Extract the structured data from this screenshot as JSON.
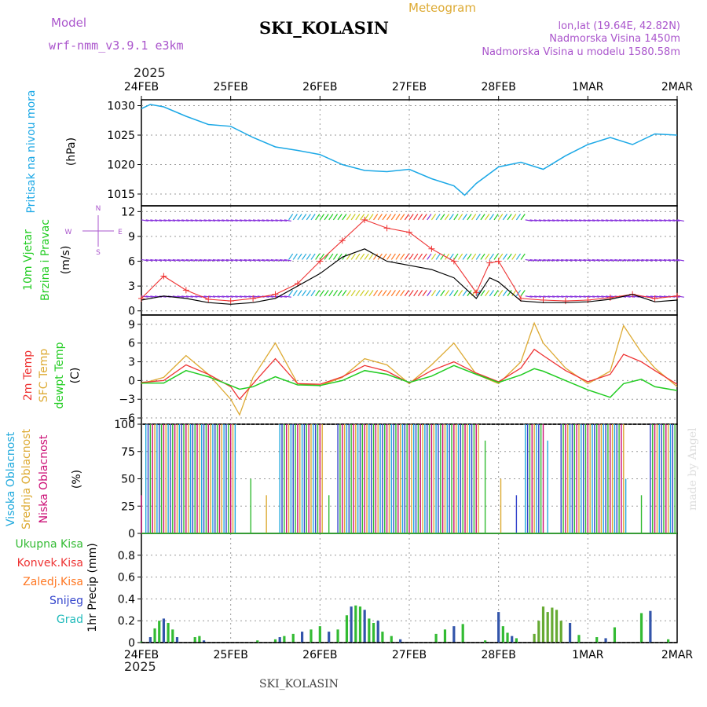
{
  "header": {
    "model_label": "Model",
    "model_name": "wrf-nmm_v3.9.1  e3km",
    "title": "SKI_KOLASIN",
    "subtitle": "Meteogram",
    "lonlat": "lon,lat (19.64E, 42.82N)",
    "elevation": "Nadmorska Visina 1450m",
    "model_elevation": "Nadmorska Visina u modelu 1580.58m",
    "year": "2025",
    "footer": "SKI_KOLASIN",
    "watermark": "made by Angel"
  },
  "colors": {
    "pressure": "#1ba8e6",
    "wind": "#22cc22",
    "t2m": "#ee3333",
    "sfc": "#ddaa33",
    "dew": "#22cc22",
    "high": "#22aadd",
    "mid": "#ddaa33",
    "low": "#cc1177",
    "precip": "#33bb33",
    "conv": "#ee3333",
    "frz": "#ff7722",
    "snow": "#3344cc",
    "grad": "#22bbbb",
    "model_label": "#aa55cc"
  },
  "chart_data": {
    "type": "meteogram",
    "time_labels": [
      "24FEB",
      "25FEB",
      "26FEB",
      "27FEB",
      "28FEB",
      "1MAR",
      "2MAR"
    ],
    "panels": [
      {
        "name": "pressure",
        "type": "line",
        "labels": [
          "Pritisak na nivou mora"
        ],
        "unit": "(hPa)",
        "ylim": [
          1013,
          1031
        ],
        "yticks": [
          1015,
          1020,
          1025,
          1030
        ],
        "x": [
          0,
          0.1,
          0.25,
          0.5,
          0.75,
          1,
          1.25,
          1.5,
          1.75,
          2,
          2.25,
          2.5,
          2.75,
          3,
          3.25,
          3.5,
          3.62,
          3.75,
          4,
          4.25,
          4.5,
          4.75,
          5,
          5.25,
          5.5,
          5.75,
          6
        ],
        "values": [
          1029.5,
          1030.2,
          1029.8,
          1028.2,
          1026.8,
          1026.5,
          1024.6,
          1023,
          1022.4,
          1021.7,
          1020,
          1019,
          1018.8,
          1019.2,
          1017.6,
          1016.4,
          1014.8,
          1016.8,
          1019.6,
          1020.4,
          1019.2,
          1021.5,
          1023.4,
          1024.6,
          1023.4,
          1025.2,
          1025
        ]
      },
      {
        "name": "wind",
        "type": "line",
        "labels": [
          "10m Vjetar",
          "Brzina i Pravac"
        ],
        "unit": "(m/s)",
        "ylim": [
          -0.5,
          12.7
        ],
        "yticks": [
          0,
          3,
          6,
          9,
          12
        ],
        "compass": [
          "N",
          "W",
          "E",
          "S"
        ],
        "x": [
          0,
          0.25,
          0.5,
          0.75,
          1,
          1.25,
          1.5,
          1.75,
          2,
          2.25,
          2.5,
          2.75,
          3,
          3.25,
          3.5,
          3.75,
          3.9,
          4,
          4.25,
          4.5,
          4.75,
          5,
          5.25,
          5.5,
          5.75,
          6
        ],
        "gust": [
          1.5,
          4.2,
          2.5,
          1.4,
          1.2,
          1.5,
          2,
          3.3,
          6,
          8.5,
          11,
          10,
          9.5,
          7.5,
          6,
          2.2,
          5.8,
          6,
          1.5,
          1.3,
          1.2,
          1.3,
          1.6,
          2,
          1.5,
          1.8
        ],
        "speed": [
          1.3,
          1.8,
          1.5,
          1,
          0.8,
          1,
          1.5,
          3,
          4.5,
          6.5,
          7.5,
          6,
          5.5,
          5,
          4,
          1.5,
          4,
          3.5,
          1.2,
          1,
          1,
          1.1,
          1.4,
          2,
          1.1,
          1.3
        ]
      },
      {
        "name": "temperature",
        "type": "line",
        "labels": [
          "2m Temp",
          "SFC Temp",
          "dewpt Temp"
        ],
        "unit": "(C)",
        "ylim": [
          -7,
          10.5
        ],
        "yticks": [
          -6,
          -3,
          0,
          3,
          6,
          9
        ],
        "x": [
          0,
          0.25,
          0.5,
          0.75,
          1,
          1.1,
          1.25,
          1.5,
          1.75,
          2,
          2.25,
          2.5,
          2.75,
          3,
          3.25,
          3.5,
          3.75,
          4,
          4.25,
          4.4,
          4.5,
          4.75,
          5,
          5.25,
          5.4,
          5.6,
          5.75,
          6
        ],
        "t2m": [
          -0.3,
          0,
          2.5,
          1,
          -1,
          -3,
          -0.5,
          3.5,
          -0.5,
          -0.6,
          0.6,
          2.4,
          1.5,
          -0.4,
          1.6,
          3,
          1.2,
          -0.2,
          2,
          5,
          4,
          1.6,
          -0.2,
          1,
          4.2,
          3,
          1.6,
          -0.6
        ],
        "sfc": [
          -0.5,
          0.5,
          4,
          1,
          -3,
          -5.5,
          0.5,
          6,
          -0.5,
          -0.8,
          0.5,
          3.5,
          2.5,
          -0.5,
          2.5,
          6,
          1,
          -0.5,
          3,
          9.2,
          6,
          2,
          -0.5,
          1.5,
          8.8,
          4.5,
          2,
          -1
        ],
        "dewpt": [
          -0.4,
          -0.4,
          1.6,
          0.6,
          -0.8,
          -1.4,
          -1,
          0.6,
          -0.7,
          -0.8,
          0,
          1.6,
          1,
          -0.3,
          0.7,
          2.4,
          1,
          -0.3,
          0.9,
          1.9,
          1.5,
          0,
          -1.5,
          -2.7,
          -0.5,
          0.2,
          -1,
          -1.6
        ]
      },
      {
        "name": "clouds",
        "type": "bar",
        "labels": [
          "Visoka Oblacnost",
          "Srednja Oblacnost",
          "Niska Oblacnost"
        ],
        "unit": "(%)",
        "ylim": [
          0,
          100
        ],
        "yticks": [
          0,
          25,
          50,
          75,
          100
        ]
      },
      {
        "name": "precip",
        "type": "bar",
        "labels": [
          "Ukupna Kisa",
          "Konvek.Kisa",
          "Zaledj.Kisa",
          "Snijeg",
          "Grad"
        ],
        "unit": "1hr Precip (mm)",
        "ylim": [
          0,
          1.0
        ],
        "yticks": [
          0,
          0.2,
          0.4,
          0.6,
          0.8
        ],
        "x": [
          0,
          0.1,
          0.15,
          0.2,
          0.25,
          0.3,
          0.35,
          0.4,
          0.6,
          0.65,
          0.7,
          1.3,
          1.5,
          1.55,
          1.6,
          1.7,
          1.8,
          1.9,
          2,
          2.1,
          2.2,
          2.3,
          2.35,
          2.4,
          2.45,
          2.5,
          2.55,
          2.6,
          2.65,
          2.7,
          2.8,
          2.9,
          3.3,
          3.4,
          3.5,
          3.6,
          3.85,
          4,
          4.05,
          4.1,
          4.15,
          4.2,
          4.4,
          4.45,
          4.5,
          4.55,
          4.6,
          4.65,
          4.7,
          4.8,
          4.9,
          5.1,
          5.2,
          5.3,
          5.6,
          5.7,
          5.9
        ],
        "values": [
          0.01,
          0.05,
          0.13,
          0.2,
          0.22,
          0.18,
          0.12,
          0.05,
          0.05,
          0.06,
          0.02,
          0.02,
          0.03,
          0.05,
          0.06,
          0.08,
          0.1,
          0.12,
          0.15,
          0.1,
          0.12,
          0.25,
          0.33,
          0.34,
          0.33,
          0.3,
          0.22,
          0.18,
          0.2,
          0.1,
          0.06,
          0.03,
          0.08,
          0.12,
          0.15,
          0.17,
          0.02,
          0.28,
          0.15,
          0.09,
          0.06,
          0.04,
          0.08,
          0.2,
          0.33,
          0.28,
          0.32,
          0.3,
          0.2,
          0.18,
          0.07,
          0.05,
          0.04,
          0.14,
          0.27,
          0.29,
          0.03
        ]
      }
    ]
  }
}
